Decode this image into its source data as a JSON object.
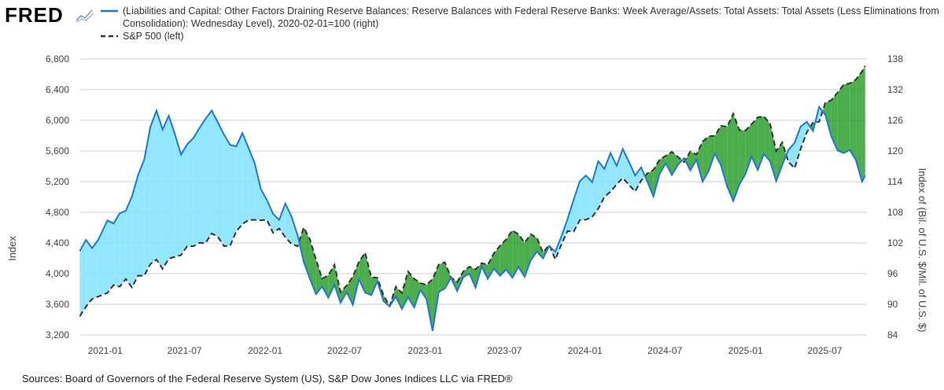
{
  "brand": {
    "logo_text": "FRED",
    "logo_icon": "graph-line-icon"
  },
  "footer": {
    "sources": "Sources: Board of Governors of the Federal Reserve System (US), S&P Dow Jones Indices LLC via FRED®"
  },
  "colors": {
    "series_blue": "#1f77d4",
    "series_dark": "#333333",
    "green_fill": "#2ca02c",
    "cyan_fill": "#7fe3ff",
    "grid": "#cccccc"
  },
  "chart_data": {
    "type": "line",
    "ylabel_left": "Index",
    "ylabel_right": "Index of (Bil. of U.S. $/Mil. of U.S. $)",
    "ylim_left": [
      3200,
      6800
    ],
    "ylim_right": [
      84,
      138
    ],
    "yticks_left": [
      "3,200",
      "3,600",
      "4,000",
      "4,400",
      "4,800",
      "5,200",
      "5,600",
      "6,000",
      "6,400",
      "6,800"
    ],
    "yticks_right": [
      "84",
      "90",
      "96",
      "102",
      "108",
      "114",
      "120",
      "126",
      "132",
      "138"
    ],
    "xticks": [
      "2021-01",
      "2021-07",
      "2022-01",
      "2022-07",
      "2023-01",
      "2023-07",
      "2024-01",
      "2024-07",
      "2025-01",
      "2025-07"
    ],
    "x_range": [
      "2020-11-05",
      "2025-10-05"
    ],
    "grid": true,
    "series": [
      {
        "name": "(Liabilities and Capital: Other Factors Draining Reserve Balances: Reserve Balances with Federal Reserve Banks: Week Average/Assets: Total Assets: Total Assets (Less Eliminations from Consolidation): Wednesday Level), 2020-02-01=100 (right)",
        "axis": "right",
        "style": "solid",
        "points": [
          [
            "2020-11-04",
            100.4
          ],
          [
            "2020-11-18",
            102.6
          ],
          [
            "2020-12-02",
            101.0
          ],
          [
            "2020-12-16",
            102.6
          ],
          [
            "2021-01-06",
            106.4
          ],
          [
            "2021-01-20",
            105.8
          ],
          [
            "2021-02-03",
            107.8
          ],
          [
            "2021-02-17",
            108.3
          ],
          [
            "2021-03-03",
            111.1
          ],
          [
            "2021-03-17",
            115.3
          ],
          [
            "2021-03-31",
            118.3
          ],
          [
            "2021-04-14",
            124.7
          ],
          [
            "2021-04-28",
            127.9
          ],
          [
            "2021-05-12",
            124.2
          ],
          [
            "2021-05-26",
            126.9
          ],
          [
            "2021-06-09",
            123.3
          ],
          [
            "2021-06-23",
            119.3
          ],
          [
            "2021-07-07",
            121.3
          ],
          [
            "2021-07-21",
            122.5
          ],
          [
            "2021-08-04",
            124.5
          ],
          [
            "2021-08-18",
            126.3
          ],
          [
            "2021-09-01",
            127.9
          ],
          [
            "2021-09-15",
            125.6
          ],
          [
            "2021-09-29",
            123.2
          ],
          [
            "2021-10-13",
            121.2
          ],
          [
            "2021-10-27",
            120.9
          ],
          [
            "2021-11-10",
            123.5
          ],
          [
            "2021-11-24",
            120.6
          ],
          [
            "2021-12-08",
            117.6
          ],
          [
            "2021-12-22",
            112.6
          ],
          [
            "2022-01-05",
            110.4
          ],
          [
            "2022-01-19",
            107.7
          ],
          [
            "2022-02-02",
            106.5
          ],
          [
            "2022-02-16",
            109.7
          ],
          [
            "2022-03-02",
            107.2
          ],
          [
            "2022-03-16",
            103.5
          ],
          [
            "2022-03-30",
            98.3
          ],
          [
            "2022-04-13",
            95.0
          ],
          [
            "2022-04-27",
            92.0
          ],
          [
            "2022-05-11",
            93.5
          ],
          [
            "2022-05-25",
            91.3
          ],
          [
            "2022-06-08",
            93.8
          ],
          [
            "2022-06-22",
            90.3
          ],
          [
            "2022-07-06",
            92.4
          ],
          [
            "2022-07-20",
            89.9
          ],
          [
            "2022-08-03",
            94.9
          ],
          [
            "2022-08-17",
            92.3
          ],
          [
            "2022-08-31",
            91.8
          ],
          [
            "2022-09-14",
            94.5
          ],
          [
            "2022-09-28",
            90.6
          ],
          [
            "2022-10-12",
            89.6
          ],
          [
            "2022-10-26",
            91.5
          ],
          [
            "2022-11-09",
            89.1
          ],
          [
            "2022-11-23",
            91.4
          ],
          [
            "2022-12-07",
            89.4
          ],
          [
            "2022-12-21",
            92.8
          ],
          [
            "2023-01-04",
            91.0
          ],
          [
            "2023-01-18",
            84.8
          ],
          [
            "2023-02-01",
            92.4
          ],
          [
            "2023-02-15",
            93.1
          ],
          [
            "2023-03-01",
            95.2
          ],
          [
            "2023-03-15",
            92.6
          ],
          [
            "2023-03-29",
            95.3
          ],
          [
            "2023-04-12",
            96.0
          ],
          [
            "2023-04-26",
            93.3
          ],
          [
            "2023-05-10",
            97.4
          ],
          [
            "2023-05-24",
            95.0
          ],
          [
            "2023-06-07",
            97.0
          ],
          [
            "2023-06-21",
            95.6
          ],
          [
            "2023-07-05",
            96.8
          ],
          [
            "2023-07-19",
            95.2
          ],
          [
            "2023-08-02",
            97.3
          ],
          [
            "2023-08-16",
            95.4
          ],
          [
            "2023-08-30",
            98.6
          ],
          [
            "2023-09-13",
            100.3
          ],
          [
            "2023-09-27",
            99.0
          ],
          [
            "2023-10-11",
            101.4
          ],
          [
            "2023-10-25",
            100.3
          ],
          [
            "2023-11-08",
            103.3
          ],
          [
            "2023-11-22",
            106.7
          ],
          [
            "2023-12-06",
            110.5
          ],
          [
            "2023-12-20",
            114.1
          ],
          [
            "2024-01-03",
            115.2
          ],
          [
            "2024-01-17",
            113.9
          ],
          [
            "2024-01-31",
            118.0
          ],
          [
            "2024-02-14",
            116.5
          ],
          [
            "2024-02-28",
            119.6
          ],
          [
            "2024-03-13",
            117.1
          ],
          [
            "2024-03-27",
            120.4
          ],
          [
            "2024-04-10",
            117.9
          ],
          [
            "2024-04-24",
            115.2
          ],
          [
            "2024-05-08",
            116.8
          ],
          [
            "2024-05-22",
            114.0
          ],
          [
            "2024-06-05",
            111.1
          ],
          [
            "2024-06-19",
            115.5
          ],
          [
            "2024-07-03",
            117.6
          ],
          [
            "2024-07-17",
            115.3
          ],
          [
            "2024-07-31",
            117.3
          ],
          [
            "2024-08-14",
            118.6
          ],
          [
            "2024-08-28",
            116.2
          ],
          [
            "2024-09-11",
            118.3
          ],
          [
            "2024-09-25",
            114.0
          ],
          [
            "2024-10-09",
            116.1
          ],
          [
            "2024-10-23",
            119.5
          ],
          [
            "2024-11-06",
            117.2
          ],
          [
            "2024-11-20",
            113.1
          ],
          [
            "2024-12-04",
            110.2
          ],
          [
            "2024-12-18",
            113.4
          ],
          [
            "2025-01-01",
            115.5
          ],
          [
            "2025-01-15",
            118.9
          ],
          [
            "2025-01-29",
            116.3
          ],
          [
            "2025-02-12",
            119.4
          ],
          [
            "2025-02-26",
            118.0
          ],
          [
            "2025-03-12",
            114.1
          ],
          [
            "2025-03-26",
            117.3
          ],
          [
            "2025-04-09",
            120.2
          ],
          [
            "2025-04-23",
            121.6
          ],
          [
            "2025-05-07",
            124.8
          ],
          [
            "2025-05-21",
            125.7
          ],
          [
            "2025-06-04",
            123.9
          ],
          [
            "2025-06-18",
            128.6
          ],
          [
            "2025-07-02",
            127.1
          ],
          [
            "2025-07-16",
            122.8
          ],
          [
            "2025-07-30",
            120.1
          ],
          [
            "2025-08-13",
            119.6
          ],
          [
            "2025-08-27",
            120.2
          ],
          [
            "2025-09-10",
            118.2
          ],
          [
            "2025-09-24",
            114.0
          ],
          [
            "2025-10-01",
            115.2
          ]
        ]
      },
      {
        "name": "S&P 500 (left)",
        "axis": "left",
        "style": "dashed",
        "points": [
          [
            "2020-11-04",
            3444
          ],
          [
            "2020-11-18",
            3568
          ],
          [
            "2020-12-02",
            3669
          ],
          [
            "2020-12-16",
            3701
          ],
          [
            "2021-01-06",
            3748
          ],
          [
            "2021-01-20",
            3851
          ],
          [
            "2021-02-03",
            3830
          ],
          [
            "2021-02-17",
            3931
          ],
          [
            "2021-03-03",
            3820
          ],
          [
            "2021-03-17",
            3974
          ],
          [
            "2021-03-31",
            3973
          ],
          [
            "2021-04-14",
            4124
          ],
          [
            "2021-04-28",
            4183
          ],
          [
            "2021-05-12",
            4063
          ],
          [
            "2021-05-26",
            4195
          ],
          [
            "2021-06-09",
            4219
          ],
          [
            "2021-06-23",
            4241
          ],
          [
            "2021-07-07",
            4358
          ],
          [
            "2021-07-21",
            4358
          ],
          [
            "2021-08-04",
            4402
          ],
          [
            "2021-08-18",
            4400
          ],
          [
            "2021-09-01",
            4525
          ],
          [
            "2021-09-15",
            4481
          ],
          [
            "2021-09-29",
            4359
          ],
          [
            "2021-10-13",
            4364
          ],
          [
            "2021-10-27",
            4551
          ],
          [
            "2021-11-10",
            4646
          ],
          [
            "2021-11-24",
            4701
          ],
          [
            "2021-12-08",
            4701
          ],
          [
            "2021-12-22",
            4696
          ],
          [
            "2022-01-05",
            4700
          ],
          [
            "2022-01-19",
            4532
          ],
          [
            "2022-02-02",
            4589
          ],
          [
            "2022-02-16",
            4475
          ],
          [
            "2022-03-02",
            4386
          ],
          [
            "2022-03-16",
            4357
          ],
          [
            "2022-03-30",
            4602
          ],
          [
            "2022-04-13",
            4446
          ],
          [
            "2022-04-27",
            4183
          ],
          [
            "2022-05-11",
            3935
          ],
          [
            "2022-05-25",
            3978
          ],
          [
            "2022-06-08",
            4116
          ],
          [
            "2022-06-22",
            3759
          ],
          [
            "2022-07-06",
            3845
          ],
          [
            "2022-07-20",
            3960
          ],
          [
            "2022-08-03",
            4155
          ],
          [
            "2022-08-17",
            4274
          ],
          [
            "2022-08-31",
            3955
          ],
          [
            "2022-09-14",
            3946
          ],
          [
            "2022-09-28",
            3719
          ],
          [
            "2022-10-12",
            3577
          ],
          [
            "2022-10-26",
            3830
          ],
          [
            "2022-11-09",
            3748
          ],
          [
            "2022-11-23",
            4027
          ],
          [
            "2022-12-07",
            3933
          ],
          [
            "2022-12-21",
            3878
          ],
          [
            "2023-01-04",
            3853
          ],
          [
            "2023-01-18",
            3929
          ],
          [
            "2023-02-01",
            4119
          ],
          [
            "2023-02-15",
            4147
          ],
          [
            "2023-03-01",
            3951
          ],
          [
            "2023-03-15",
            3891
          ],
          [
            "2023-03-29",
            4027
          ],
          [
            "2023-04-12",
            4091
          ],
          [
            "2023-04-26",
            4055
          ],
          [
            "2023-05-10",
            4137
          ],
          [
            "2023-05-24",
            4115
          ],
          [
            "2023-06-07",
            4267
          ],
          [
            "2023-06-21",
            4365
          ],
          [
            "2023-07-05",
            4446
          ],
          [
            "2023-07-19",
            4565
          ],
          [
            "2023-08-02",
            4513
          ],
          [
            "2023-08-16",
            4404
          ],
          [
            "2023-08-30",
            4514
          ],
          [
            "2023-09-13",
            4467
          ],
          [
            "2023-09-27",
            4274
          ],
          [
            "2023-10-11",
            4376
          ],
          [
            "2023-10-25",
            4186
          ],
          [
            "2023-11-08",
            4382
          ],
          [
            "2023-11-22",
            4556
          ],
          [
            "2023-12-06",
            4549
          ],
          [
            "2023-12-20",
            4698
          ],
          [
            "2024-01-03",
            4704
          ],
          [
            "2024-01-17",
            4739
          ],
          [
            "2024-01-31",
            4846
          ],
          [
            "2024-02-14",
            5000
          ],
          [
            "2024-02-28",
            5069
          ],
          [
            "2024-03-13",
            5165
          ],
          [
            "2024-03-27",
            5248
          ],
          [
            "2024-04-10",
            5160
          ],
          [
            "2024-04-24",
            5071
          ],
          [
            "2024-05-08",
            5214
          ],
          [
            "2024-05-22",
            5307
          ],
          [
            "2024-06-05",
            5354
          ],
          [
            "2024-06-19",
            5487
          ],
          [
            "2024-07-03",
            5537
          ],
          [
            "2024-07-17",
            5588
          ],
          [
            "2024-07-31",
            5522
          ],
          [
            "2024-08-14",
            5455
          ],
          [
            "2024-08-28",
            5592
          ],
          [
            "2024-09-11",
            5554
          ],
          [
            "2024-09-25",
            5722
          ],
          [
            "2024-10-09",
            5792
          ],
          [
            "2024-10-23",
            5797
          ],
          [
            "2024-11-06",
            5929
          ],
          [
            "2024-11-20",
            5917
          ],
          [
            "2024-12-04",
            6086
          ],
          [
            "2024-12-18",
            5872
          ],
          [
            "2025-01-01",
            5868
          ],
          [
            "2025-01-15",
            5950
          ],
          [
            "2025-01-29",
            6039
          ],
          [
            "2025-02-12",
            6051
          ],
          [
            "2025-02-26",
            5956
          ],
          [
            "2025-03-12",
            5599
          ],
          [
            "2025-03-26",
            5712
          ],
          [
            "2025-04-09",
            5456
          ],
          [
            "2025-04-23",
            5375
          ],
          [
            "2025-05-07",
            5631
          ],
          [
            "2025-05-21",
            5845
          ],
          [
            "2025-06-04",
            5970
          ],
          [
            "2025-06-18",
            5981
          ],
          [
            "2025-07-02",
            6227
          ],
          [
            "2025-07-16",
            6264
          ],
          [
            "2025-07-30",
            6362
          ],
          [
            "2025-08-13",
            6466
          ],
          [
            "2025-08-27",
            6481
          ],
          [
            "2025-09-10",
            6532
          ],
          [
            "2025-09-24",
            6638
          ],
          [
            "2025-10-01",
            6711
          ]
        ]
      }
    ]
  }
}
